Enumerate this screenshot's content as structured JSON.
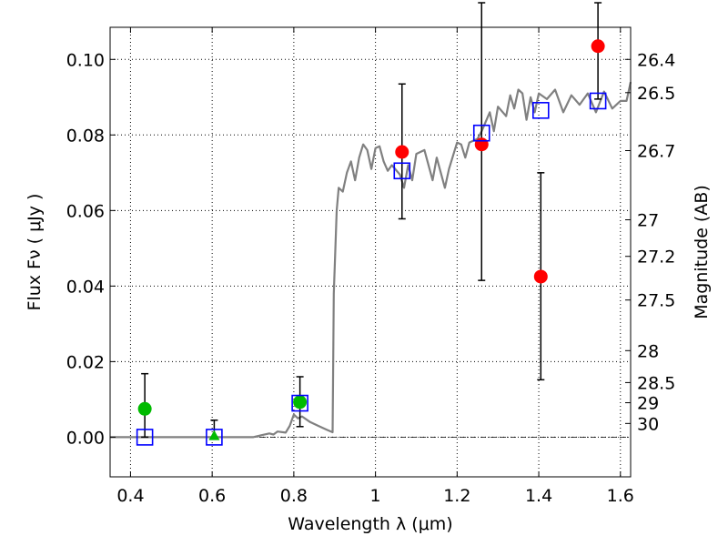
{
  "chart_data": {
    "type": "scatter",
    "title": "",
    "xlabel": "Wavelength  λ (μm)",
    "ylabel": "Flux  Fν  ( μJy )",
    "ylabel_right": "Magnitude (AB)",
    "xlim": [
      0.35,
      1.625
    ],
    "ylim": [
      -0.0105,
      0.1085
    ],
    "grid": true,
    "x_ticks": [
      0.4,
      0.6,
      0.8,
      1.0,
      1.2,
      1.4,
      1.6
    ],
    "x_tick_labels": [
      "0.4",
      "0.6",
      "0.8",
      "1",
      "1.2",
      "1.4",
      "1.6"
    ],
    "y_ticks": [
      0.0,
      0.02,
      0.04,
      0.06,
      0.08,
      0.1
    ],
    "y_tick_labels": [
      "0.00",
      "0.02",
      "0.04",
      "0.06",
      "0.08",
      "0.10"
    ],
    "mag_ticks": [
      26.4,
      26.5,
      26.7,
      27.0,
      27.2,
      27.5,
      28.0,
      28.5,
      29.0,
      30.0
    ],
    "mag_tick_labels": [
      "26.4",
      "26.5",
      "26.7",
      "27",
      "27.2",
      "27.5",
      "28",
      "28.5",
      "29",
      "30"
    ],
    "colors": {
      "template": "#808080",
      "model": "#0000ff",
      "detection": "#00bb00",
      "measurement": "#ff0000",
      "errorbar": "#000000",
      "zeroline": "#000000"
    },
    "template_spectrum": {
      "x": [
        0.35,
        0.7,
        0.72,
        0.74,
        0.75,
        0.76,
        0.78,
        0.79,
        0.8,
        0.81,
        0.82,
        0.84,
        0.86,
        0.88,
        0.895,
        0.898,
        0.905,
        0.91,
        0.92,
        0.93,
        0.94,
        0.95,
        0.96,
        0.97,
        0.98,
        0.99,
        1.0,
        1.01,
        1.02,
        1.03,
        1.04,
        1.06,
        1.07,
        1.08,
        1.09,
        1.1,
        1.12,
        1.14,
        1.15,
        1.17,
        1.18,
        1.2,
        1.21,
        1.22,
        1.23,
        1.25,
        1.26,
        1.28,
        1.29,
        1.3,
        1.32,
        1.33,
        1.34,
        1.35,
        1.36,
        1.37,
        1.38,
        1.39,
        1.4,
        1.42,
        1.44,
        1.46,
        1.48,
        1.5,
        1.52,
        1.54,
        1.56,
        1.58,
        1.6,
        1.615,
        1.625
      ],
      "y": [
        0.0,
        0.0,
        0.0005,
        0.001,
        0.0007,
        0.0015,
        0.0012,
        0.003,
        0.006,
        0.005,
        0.0055,
        0.004,
        0.003,
        0.002,
        0.0013,
        0.038,
        0.06,
        0.066,
        0.065,
        0.07,
        0.073,
        0.068,
        0.074,
        0.0775,
        0.076,
        0.071,
        0.0765,
        0.077,
        0.073,
        0.0705,
        0.072,
        0.0695,
        0.066,
        0.072,
        0.068,
        0.075,
        0.076,
        0.068,
        0.074,
        0.066,
        0.071,
        0.078,
        0.0775,
        0.074,
        0.078,
        0.079,
        0.081,
        0.086,
        0.081,
        0.0875,
        0.085,
        0.0905,
        0.087,
        0.092,
        0.091,
        0.084,
        0.09,
        0.086,
        0.091,
        0.0895,
        0.092,
        0.086,
        0.0905,
        0.088,
        0.091,
        0.086,
        0.0915,
        0.087,
        0.089,
        0.089,
        0.094
      ]
    },
    "model_points": {
      "x": [
        0.435,
        0.605,
        0.815,
        1.065,
        1.26,
        1.405,
        1.545
      ],
      "y": [
        0.0,
        0.0,
        0.009,
        0.0705,
        0.0805,
        0.0865,
        0.089
      ]
    },
    "green_points": {
      "x": [
        0.435,
        0.605,
        0.815
      ],
      "y": [
        0.0075,
        0.0002,
        0.0093
      ],
      "err_low": [
        0.0,
        0.0,
        0.0028
      ],
      "err_high": [
        0.0168,
        0.0045,
        0.016
      ]
    },
    "red_points": {
      "x": [
        1.065,
        1.26,
        1.405,
        1.545
      ],
      "y": [
        0.0755,
        0.0775,
        0.0425,
        0.1035
      ],
      "err_low": [
        0.0578,
        0.0415,
        0.0152,
        0.0895
      ],
      "err_high": [
        0.0935,
        0.115,
        0.07,
        0.115
      ]
    }
  }
}
